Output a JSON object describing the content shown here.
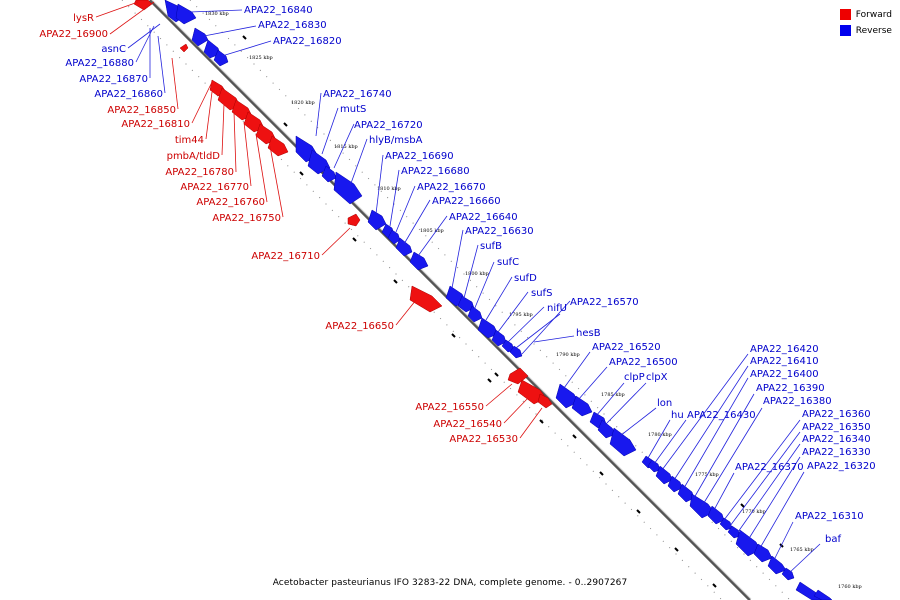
{
  "legend": {
    "forward_label": "Forward",
    "reverse_label": "Reverse",
    "forward_color": "#ee0000",
    "reverse_color": "#0000ee"
  },
  "caption": "Acetobacter pasteurianus IFO 3283-22 DNA, complete genome. - 0..2907267",
  "scale_labels": [
    "1830 kbp",
    "1825 kbp",
    "1820 kbp",
    "1815 kbp",
    "1810 kbp",
    "1805 kbp",
    "1800 kbp",
    "1795 kbp",
    "1790 kbp",
    "1785 kbp",
    "1780 kbp",
    "1775 kbp",
    "1770 kbp",
    "1765 kbp",
    "1760 kbp"
  ],
  "forward_genes": [
    "lysR",
    "APA22_16900",
    "APA22_16850",
    "APA22_16810",
    "tim44",
    "pmbA/tldD",
    "APA22_16780",
    "APA22_16770",
    "APA22_16760",
    "APA22_16750",
    "APA22_16710",
    "APA22_16650",
    "APA22_16550",
    "APA22_16540",
    "APA22_16530"
  ],
  "reverse_genes": [
    "APA22_16840",
    "APA22_16830",
    "APA22_16820",
    "asnC",
    "APA22_16880",
    "APA22_16870",
    "APA22_16860",
    "APA22_16740",
    "mutS",
    "APA22_16720",
    "hlyB/msbA",
    "APA22_16690",
    "APA22_16680",
    "APA22_16670",
    "APA22_16660",
    "APA22_16640",
    "APA22_16630",
    "sufB",
    "sufC",
    "sufD",
    "sufS",
    "nifU",
    "APA22_16570",
    "hesB",
    "APA22_16520",
    "APA22_16500",
    "clpP",
    "clpX",
    "lon",
    "hu",
    "APA22_16430",
    "APA22_16420",
    "APA22_16410",
    "APA22_16400",
    "APA22_16390",
    "APA22_16380",
    "APA22_16370",
    "APA22_16360",
    "APA22_16350",
    "APA22_16340",
    "APA22_16330",
    "APA22_16320",
    "APA22_16310",
    "baf"
  ]
}
